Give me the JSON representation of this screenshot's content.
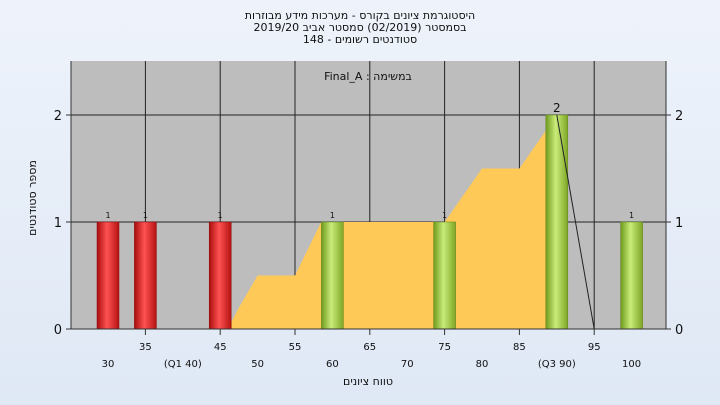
{
  "header": {
    "title": "היסטוגרמת ציונים בקורס - מערכות מידע מבוזרות",
    "subtitle": "בסמסטר  (02/2019)  סמסטר אביב 2019/20",
    "students": "סטודנטים רשומים - 148"
  },
  "chart_data": {
    "type": "bar",
    "title": "היסטוגרמת ציונים בקורס - מערכות מידע מבוזרות",
    "subtitle": "בסמסטר  (02/2019)  סמסטר אביב 2019/20",
    "annotation": "במשימה : Final_A",
    "xlabel": "טווח ציונים",
    "ylabel": "מספר סטודנטים",
    "ylim": [
      0,
      2.4
    ],
    "yticks": [
      0,
      1,
      2
    ],
    "x_minor_ticks": [
      35,
      45,
      55,
      65,
      75,
      85,
      95
    ],
    "x_major_ticks": [
      30,
      40,
      50,
      60,
      70,
      80,
      90,
      100
    ],
    "x_tick_labels": [
      "30",
      "35",
      "(Q1 40)",
      "45",
      "50",
      "55",
      "60",
      "65",
      "70",
      "75",
      "80",
      "85",
      "(Q3 90)",
      "95",
      "100"
    ],
    "bars": [
      {
        "x": 30,
        "value": 1,
        "label": "1",
        "color": "red"
      },
      {
        "x": 35,
        "value": 1,
        "label": "1",
        "color": "red"
      },
      {
        "x": 45,
        "value": 1,
        "label": "1",
        "color": "red"
      },
      {
        "x": 60,
        "value": 1,
        "label": "1",
        "color": "green"
      },
      {
        "x": 75,
        "value": 1,
        "label": "1",
        "color": "green"
      },
      {
        "x": 90,
        "value": 2,
        "label": "2",
        "color": "green"
      },
      {
        "x": 100,
        "value": 1,
        "label": "1",
        "color": "green"
      }
    ],
    "area": {
      "color": "#ffc957",
      "points": [
        [
          46,
          0
        ],
        [
          47.5,
          0.2
        ],
        [
          50,
          0.5
        ],
        [
          55,
          0.5
        ],
        [
          58.5,
          1
        ],
        [
          75,
          1
        ],
        [
          80,
          1.5
        ],
        [
          85,
          1.5
        ],
        [
          90,
          2
        ]
      ]
    },
    "line": {
      "points": [
        [
          90,
          2
        ],
        [
          95,
          0
        ]
      ],
      "color": "#222222"
    },
    "grid": true,
    "plot_background": "#bdbdbd",
    "bar_colors": {
      "red": "#e52323",
      "green": "#9ccc3c"
    }
  }
}
